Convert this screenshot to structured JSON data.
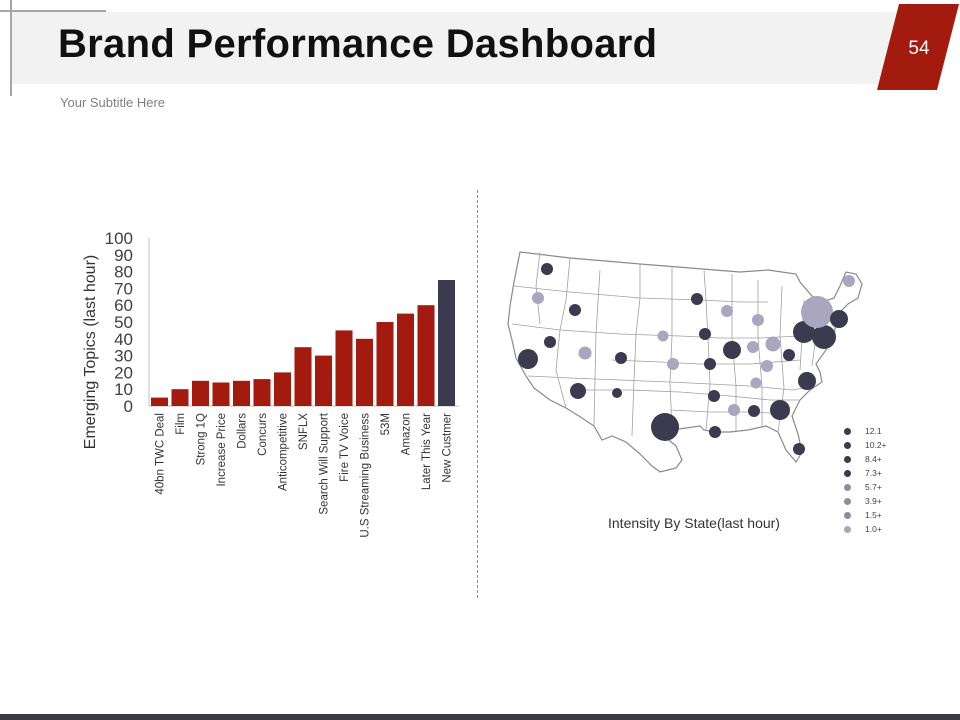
{
  "header": {
    "title": "Brand Performance Dashboard",
    "subtitle": "Your Subtitle Here",
    "page_number": "54"
  },
  "colors": {
    "accent_red": "#a31a0e",
    "dark_navy": "#3b3a4e",
    "light_purple": "#a9a6bd",
    "band_gray": "#f2f2f2"
  },
  "chart_data": {
    "type": "bar",
    "ylabel": "Emerging Topics (last hour)",
    "xlabel": "",
    "ylim": [
      0,
      100
    ],
    "yticks": [
      0,
      10,
      20,
      30,
      40,
      50,
      60,
      70,
      80,
      90,
      100
    ],
    "categories": [
      "40bn TWC Deal",
      "Film",
      "Strong 1Q",
      "Increase Price",
      "Dollars",
      "Concurs",
      "Anticompetitive",
      "SNFLX",
      "Search Will Support",
      "Fire TV Voice",
      "U.S Streaming Business",
      "53M",
      "Amazon",
      "Later This Year",
      "New Custmer"
    ],
    "values": [
      5,
      10,
      15,
      14,
      15,
      16,
      20,
      35,
      30,
      45,
      40,
      50,
      55,
      60,
      75
    ],
    "bar_colors": [
      "#a31a0e",
      "#a31a0e",
      "#a31a0e",
      "#a31a0e",
      "#a31a0e",
      "#a31a0e",
      "#a31a0e",
      "#a31a0e",
      "#a31a0e",
      "#a31a0e",
      "#a31a0e",
      "#a31a0e",
      "#a31a0e",
      "#a31a0e",
      "#3b3a4e"
    ],
    "grid": false
  },
  "map": {
    "caption": "Intensity By State(last hour)",
    "legend": [
      {
        "label": "12.1",
        "color": "#3b3a4e"
      },
      {
        "label": "10.2+",
        "color": "#3b3a4e"
      },
      {
        "label": "8.4+",
        "color": "#3b3a4e"
      },
      {
        "label": "7.3+",
        "color": "#3b3a4e"
      },
      {
        "label": "5.7+",
        "color": "#8e8ba6"
      },
      {
        "label": "3.9+",
        "color": "#8e8ba6"
      },
      {
        "label": "1.5+",
        "color": "#8e8ba6"
      },
      {
        "label": "1.0+",
        "color": "#a9a6bd"
      }
    ]
  }
}
